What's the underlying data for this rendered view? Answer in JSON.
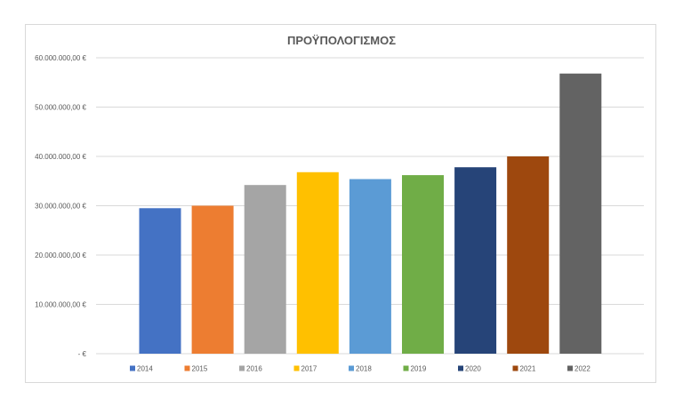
{
  "chart_data": {
    "type": "bar",
    "title": "ΠΡΟΫΠΟΛΟΓΙΣΜΟΣ",
    "xlabel": "",
    "ylabel": "",
    "ylim": [
      0,
      60000000
    ],
    "grid": true,
    "legend_position": "bottom",
    "categories": [
      "2014",
      "2015",
      "2016",
      "2017",
      "2018",
      "2019",
      "2020",
      "2021",
      "2022"
    ],
    "values": [
      29500000,
      30000000,
      34200000,
      36800000,
      35400000,
      36200000,
      37800000,
      40000000,
      56800000
    ],
    "colors": [
      "#4472c4",
      "#ed7d31",
      "#a5a5a5",
      "#ffc000",
      "#5b9bd5",
      "#70ad47",
      "#264478",
      "#9e480e",
      "#636363"
    ],
    "y_ticks": [
      0,
      10000000,
      20000000,
      30000000,
      40000000,
      50000000,
      60000000
    ],
    "y_tick_labels": [
      "-   €",
      "10.000.000,00 €",
      "20.000.000,00 €",
      "30.000.000,00 €",
      "40.000.000,00 €",
      "50.000.000,00 €",
      "60.000.000,00 €"
    ]
  }
}
